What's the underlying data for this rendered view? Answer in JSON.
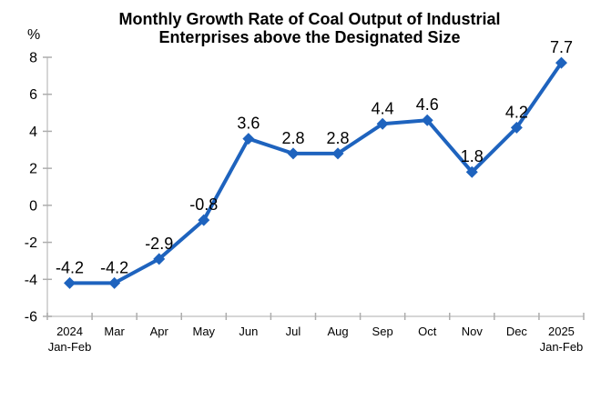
{
  "chart_data": {
    "type": "line",
    "title_lines": [
      "Monthly Growth Rate of Coal Output of Industrial",
      "Enterprises above the Designated Size"
    ],
    "ylabel": "%",
    "ylim": [
      -6,
      8
    ],
    "yticks": [
      8,
      6,
      4,
      2,
      0,
      -2,
      -4,
      -6
    ],
    "categories": [
      "2024\nJan-Feb",
      "Mar",
      "Apr",
      "May",
      "Jun",
      "Jul",
      "Aug",
      "Sep",
      "Oct",
      "Nov",
      "Dec",
      "2025\nJan-Feb"
    ],
    "values": [
      -4.2,
      -4.2,
      -2.9,
      -0.8,
      3.6,
      2.8,
      2.8,
      4.4,
      4.6,
      1.8,
      4.2,
      7.7
    ],
    "data_labels": [
      "-4.2",
      "-4.2",
      "-2.9",
      "-0.8",
      "3.6",
      "2.8",
      "2.8",
      "4.4",
      "4.6",
      "1.8",
      "4.2",
      "7.7"
    ],
    "grid": false,
    "legend": "none",
    "marker": "diamond",
    "colors": {
      "series": "#1E63BE",
      "axis_line": "#C9C9C9",
      "tick": "#ADADAD",
      "text": "#000000",
      "background": "#FFFFFF"
    }
  }
}
